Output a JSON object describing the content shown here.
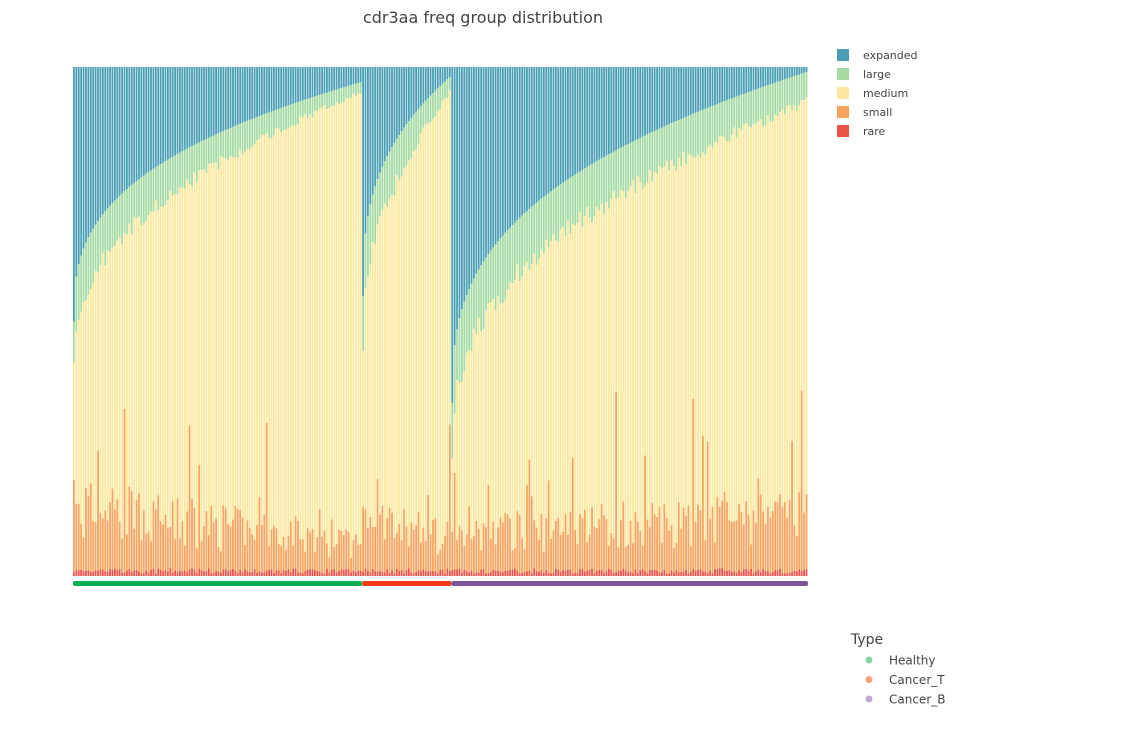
{
  "chart_data": {
    "type": "bar",
    "stacked": true,
    "normalized": true,
    "title": "cdr3aa freq group distribution",
    "ylim": [
      0,
      1
    ],
    "grid": false,
    "legend_position": "top-right",
    "series": [
      {
        "name": "expanded",
        "color": "#4a9fb5"
      },
      {
        "name": "large",
        "color": "#a5dba3"
      },
      {
        "name": "medium",
        "color": "#fde8a0"
      },
      {
        "name": "small",
        "color": "#f9a45c"
      },
      {
        "name": "rare",
        "color": "#e8534a"
      }
    ],
    "groups": [
      {
        "name": "Healthy",
        "color": "#00b050",
        "n_samples": 120,
        "profiles": {
          "expanded": {
            "start": 0.5,
            "end": 0.03
          },
          "large": {
            "start": 0.1,
            "end": 0.02
          },
          "small": {
            "start": 0.12,
            "end": 0.05
          },
          "rare": {
            "start": 0.01,
            "end": 0.01
          }
        }
      },
      {
        "name": "Cancer_T",
        "color": "#f03c14",
        "n_samples": 37,
        "profiles": {
          "expanded": {
            "start": 0.45,
            "end": 0.02
          },
          "large": {
            "start": 0.12,
            "end": 0.03
          },
          "small": {
            "start": 0.1,
            "end": 0.06
          },
          "rare": {
            "start": 0.01,
            "end": 0.01
          }
        }
      },
      {
        "name": "Cancer_B",
        "color": "#7b559a",
        "n_samples": 148,
        "profiles": {
          "expanded": {
            "start": 0.66,
            "end": 0.01
          },
          "large": {
            "start": 0.12,
            "end": 0.06
          },
          "small": {
            "start": 0.07,
            "end": 0.1
          },
          "rare": {
            "start": 0.01,
            "end": 0.01
          }
        }
      }
    ],
    "type_legend": {
      "title": "Type",
      "items": [
        {
          "name": "Healthy",
          "color": "#86d6a3"
        },
        {
          "name": "Cancer_T",
          "color": "#f7a07c"
        },
        {
          "name": "Cancer_B",
          "color": "#c0a8d4"
        }
      ]
    }
  }
}
